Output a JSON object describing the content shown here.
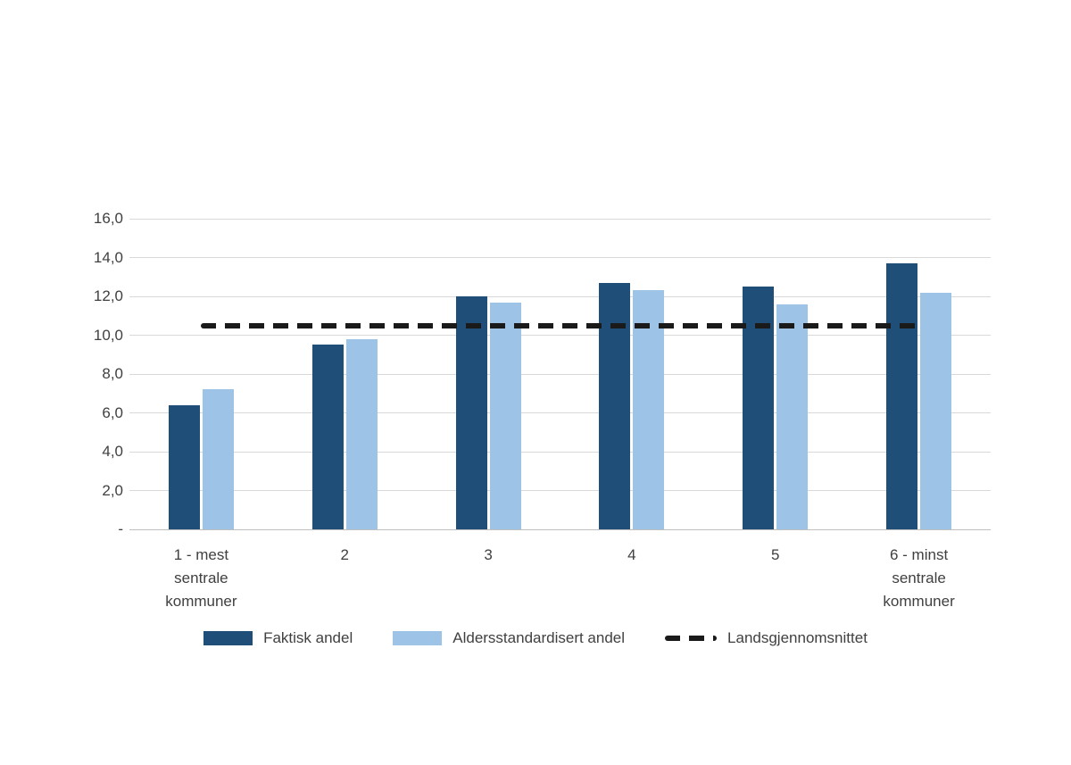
{
  "chart_data": {
    "type": "bar",
    "title": "",
    "xlabel": "",
    "ylabel": "",
    "grid": true,
    "legend_position": "bottom",
    "ylim": [
      0,
      16
    ],
    "yticks": [
      0,
      2,
      4,
      6,
      8,
      10,
      12,
      14,
      16
    ],
    "ytick_labels": [
      "-",
      "2,0",
      "4,0",
      "6,0",
      "8,0",
      "10,0",
      "12,0",
      "14,0",
      "16,0"
    ],
    "categories": [
      "1 - mest\nsentrale\nkommuner",
      "2",
      "3",
      "4",
      "5",
      "6 - minst\nsentrale\nkommuner"
    ],
    "series": [
      {
        "name": "Faktisk andel",
        "color": "#1F4E79",
        "values": [
          6.4,
          9.5,
          12.0,
          12.7,
          12.5,
          13.7
        ]
      },
      {
        "name": "Aldersstandardisert andel",
        "color": "#9DC3E6",
        "values": [
          7.2,
          9.8,
          11.7,
          12.3,
          11.6,
          12.2
        ]
      }
    ],
    "reference_line": {
      "label": "Landsgjennomsnittet",
      "value": 10.5,
      "color": "#1A1A1A"
    }
  },
  "colors": {
    "background": "#FFFFFF",
    "gridline": "#D9D9D9",
    "axis": "#BFBFBF",
    "text": "#404040"
  }
}
